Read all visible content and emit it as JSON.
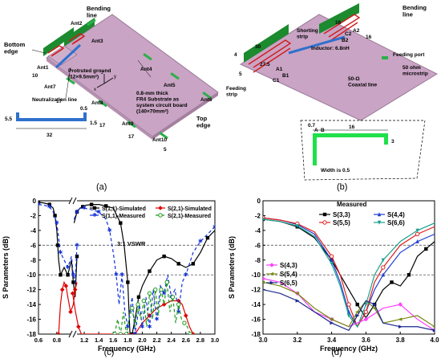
{
  "panel_a": {
    "caption": "(a)",
    "labels": {
      "bottom_edge": "Bottom\nedge",
      "bending_line": "Bending\nline",
      "top_edge": "Top\nedge",
      "protruted_ground": "Protruted ground\n(12×9.5mm²)",
      "substrate": "0.8-mm thick\nFR4 Substrate as\nsystem circuit board\n(140×70mm²)",
      "neutralization": "Neutralization line",
      "ant1": "Ant1",
      "ant2": "Ant2",
      "ant3": "Ant3",
      "ant4": "Ant4",
      "ant5": "Ant5",
      "ant6": "Ant6",
      "ant7": "Ant7",
      "ant8": "Ant8",
      "ant9": "Ant9",
      "ant10": "Ant10",
      "dim_10": "10",
      "dim_17a": "17",
      "dim_17b": "17",
      "dim_17c": "17",
      "dim_5": "5",
      "dim_55": "5.5",
      "dim_05": "0.5",
      "dim_15": "1.5",
      "dim_32": "32",
      "axis_x": "x",
      "axis_y": "y",
      "axis_z": "z"
    }
  },
  "panel_b": {
    "caption": "(b)",
    "labels": {
      "bending_line": "Bending\nline",
      "shorting_strip": "Shorting\nstrip",
      "inductor": "Inductor: 6.8nH",
      "feeding_port": "Feeding port",
      "microstrip": "50 ohm\nmicrostrip",
      "coax": "50-Ω\nCoaxial line",
      "feeding_strip": "Feeding\nstrip",
      "width": "Width is 0.5",
      "dim_30": "30",
      "dim_16a": "16",
      "dim_16b": "16",
      "dim_16c": "16",
      "dim_275": "27.5",
      "dim_07": "0.7",
      "dim_3": "3",
      "dim_4": "4",
      "dim_5": "5",
      "a1": "A1",
      "a2": "A2",
      "b1": "B1",
      "b2": "B2",
      "c1": "C1",
      "c2": "C2",
      "a": "A",
      "b": "B"
    }
  },
  "colors": {
    "substrate": "#c9a4c4",
    "antenna": "#1c8a2e",
    "blue_strip": "#2f70cc",
    "red_line": "#d21c1c",
    "green_line": "#1fe04a"
  },
  "chart_data": [
    {
      "type": "line",
      "caption": "(c)",
      "xlabel": "Frequency (GHz)",
      "ylabel": "S Parameters (dB)",
      "xticks": [
        "0.6",
        "0.8",
        "1.0",
        "1.2",
        "1.4",
        "1.6",
        "1.8",
        "2.0",
        "2.2",
        "2.4",
        "2.6",
        "2.8",
        "3.0"
      ],
      "yticks": [
        "0",
        "-2",
        "-4",
        "-6",
        "-8",
        "-10",
        "-12",
        "-14",
        "-16",
        "-18"
      ],
      "ylim": [
        -18,
        0
      ],
      "annotation": "3:1 VSWR",
      "reference_lines": [
        -6,
        -10
      ],
      "grid": false,
      "legend_position": "top",
      "series": [
        {
          "name": "S(1,1)-Simulated",
          "color": "#000000",
          "marker": "square",
          "dash": "none",
          "x": [
            0.6,
            0.66,
            0.72,
            0.76,
            0.78,
            0.8,
            0.81,
            0.82,
            0.84,
            0.88,
            0.92,
            0.96,
            0.98,
            1.0,
            1.02,
            1.06,
            1.1,
            1.14,
            1.18,
            1.22,
            1.3,
            1.4,
            1.5,
            1.6,
            1.7,
            1.75,
            1.8,
            1.83,
            1.86,
            1.9,
            1.95,
            2.0,
            2.1,
            2.2,
            2.3,
            2.4,
            2.5,
            2.6,
            2.7,
            2.8,
            2.9,
            3.0
          ],
          "y": [
            -0.2,
            -0.3,
            -0.5,
            -1,
            -2,
            -4,
            -6,
            -8,
            -10,
            -9,
            -10,
            -8,
            -11,
            -13,
            -7.5,
            -3,
            -1.5,
            -1,
            -0.8,
            -0.6,
            -0.5,
            -0.5,
            -0.7,
            -1,
            -3,
            -6,
            -11,
            -18,
            -18,
            -16,
            -13,
            -11.5,
            -9.5,
            -8,
            -7.5,
            -7.8,
            -8.5,
            -9,
            -8.5,
            -7,
            -5,
            -4
          ]
        },
        {
          "name": "S(2,1)-Simulated",
          "color": "#e00000",
          "marker": "diamond",
          "dash": "none",
          "x": [
            0.82,
            0.84,
            0.86,
            0.88,
            0.9,
            0.92,
            0.95,
            0.98,
            1.0,
            1.02,
            1.04,
            1.08,
            1.12,
            1.16,
            1.9,
            2.0,
            2.1,
            2.2,
            2.3,
            2.4,
            2.5,
            2.55,
            2.6,
            2.65,
            2.7
          ],
          "y": [
            -18,
            -14,
            -12,
            -11,
            -11.5,
            -13,
            -15,
            -14,
            -12,
            -11,
            -12.5,
            -15,
            -17,
            -18,
            -18,
            -16.5,
            -15.5,
            -14.5,
            -14,
            -13.5,
            -13.5,
            -14,
            -15.5,
            -17,
            -18
          ]
        },
        {
          "name": "S(1,1)-Measured",
          "color": "#1030d8",
          "marker": "star",
          "dash": "4,3",
          "x": [
            0.6,
            0.66,
            0.72,
            0.76,
            0.8,
            0.82,
            0.84,
            0.88,
            0.92,
            0.96,
            0.98,
            1.0,
            1.02,
            1.06,
            1.1,
            1.14,
            1.2,
            1.3,
            1.4,
            1.5,
            1.55,
            1.6,
            1.64,
            1.68,
            1.72,
            1.76,
            1.8,
            1.86,
            1.9,
            1.96,
            2.0,
            2.05,
            2.1,
            2.15,
            2.2,
            2.25,
            2.3,
            2.35,
            2.4,
            2.45,
            2.5,
            2.55,
            2.6,
            2.7,
            2.8,
            2.9,
            3.0
          ],
          "y": [
            -0.5,
            -0.6,
            -0.8,
            -1.5,
            -3,
            -5,
            -7,
            -8,
            -9,
            -7.5,
            -10,
            -11,
            -6,
            -2.5,
            -1.5,
            -1,
            -1,
            -1.2,
            -1.5,
            -2.5,
            -4,
            -7,
            -10,
            -14,
            -10,
            -15,
            -17,
            -13,
            -18,
            -14,
            -17,
            -13,
            -17,
            -12,
            -16,
            -11.5,
            -12.5,
            -10,
            -13,
            -12,
            -15,
            -11,
            -10,
            -7,
            -5.5,
            -4.5,
            -3.5
          ]
        },
        {
          "name": "S(2,1)-Measured",
          "color": "#1a9a1a",
          "marker": "circle",
          "dash": "4,3",
          "x": [
            1.62,
            1.66,
            1.7,
            1.74,
            1.78,
            1.82,
            1.86,
            1.9,
            1.94,
            1.98,
            2.02,
            2.06,
            2.1,
            2.14,
            2.18,
            2.22,
            2.26,
            2.3,
            2.34,
            2.38,
            2.42,
            2.46,
            2.5,
            2.54,
            2.58,
            2.62,
            2.66
          ],
          "y": [
            -18,
            -16,
            -18,
            -15,
            -18,
            -16,
            -14.5,
            -17,
            -14,
            -16,
            -13.5,
            -17,
            -12.5,
            -16,
            -12,
            -15.5,
            -12,
            -14,
            -11,
            -15,
            -13,
            -16.5,
            -14,
            -16,
            -16.5,
            -17,
            -18
          ]
        }
      ]
    },
    {
      "type": "line",
      "caption": "(d)",
      "xlabel": "Frequency (GHz)",
      "ylabel": "S Parameters (dB)",
      "xticks": [
        "3.0",
        "3.2",
        "3.4",
        "3.6",
        "3.8",
        "4.0"
      ],
      "yticks": [
        "0",
        "-2",
        "-4",
        "-6",
        "-8",
        "-10",
        "-12",
        "-14",
        "-16",
        "-18"
      ],
      "xlim": [
        3.0,
        4.0
      ],
      "ylim": [
        -18,
        0
      ],
      "reference_lines": [
        -6,
        -10
      ],
      "legend_title": "Measured",
      "grid": false,
      "series": [
        {
          "name": "S(3,3)",
          "color": "#000000",
          "marker": "square",
          "x": [
            3.0,
            3.1,
            3.2,
            3.3,
            3.4,
            3.5,
            3.55,
            3.6,
            3.65,
            3.7,
            3.75,
            3.8,
            3.85,
            3.9,
            3.95,
            4.0
          ],
          "y": [
            -2.5,
            -2.8,
            -3.5,
            -5,
            -8,
            -12,
            -14,
            -15.8,
            -14,
            -12,
            -11,
            -11.5,
            -10,
            -7.5,
            -6.5,
            -5.5
          ]
        },
        {
          "name": "S(4,4)",
          "color": "#1f3fd0",
          "marker": "triangle",
          "x": [
            3.0,
            3.1,
            3.2,
            3.3,
            3.4,
            3.45,
            3.5,
            3.55,
            3.6,
            3.65,
            3.7,
            3.8,
            3.9,
            4.0
          ],
          "y": [
            -2.3,
            -2.6,
            -3.2,
            -4.5,
            -8,
            -11,
            -15,
            -17,
            -15,
            -12,
            -10,
            -7,
            -5.5,
            -4.5
          ]
        },
        {
          "name": "S(5,5)",
          "color": "#e02020",
          "marker": "circle",
          "x": [
            3.0,
            3.1,
            3.2,
            3.3,
            3.4,
            3.45,
            3.5,
            3.55,
            3.6,
            3.65,
            3.7,
            3.8,
            3.9,
            4.0
          ],
          "y": [
            -2.3,
            -2.6,
            -3.1,
            -4.2,
            -7.5,
            -10,
            -14,
            -17,
            -15,
            -11,
            -9,
            -6,
            -4.5,
            -3.5
          ]
        },
        {
          "name": "S(6,6)",
          "color": "#1aa090",
          "marker": "inverted-triangle",
          "x": [
            3.0,
            3.1,
            3.2,
            3.3,
            3.4,
            3.45,
            3.5,
            3.55,
            3.6,
            3.65,
            3.7,
            3.8,
            3.9,
            4.0
          ],
          "y": [
            -2.5,
            -2.8,
            -3.4,
            -4.8,
            -8.5,
            -11.5,
            -15.5,
            -17,
            -14,
            -10,
            -8,
            -5.5,
            -4,
            -3
          ]
        },
        {
          "name": "S(4,3)",
          "color": "#ff40ff",
          "marker": "diamond",
          "x": [
            3.0,
            3.1,
            3.2,
            3.3,
            3.4,
            3.5,
            3.6,
            3.7,
            3.8,
            3.9,
            4.0
          ],
          "y": [
            -10.5,
            -11,
            -12.5,
            -15,
            -16,
            -17,
            -16,
            -14.5,
            -14,
            -16,
            -17.5
          ]
        },
        {
          "name": "S(5,4)",
          "color": "#7a8a10",
          "marker": "triangle-left",
          "x": [
            3.0,
            3.1,
            3.2,
            3.3,
            3.4,
            3.5,
            3.55,
            3.6,
            3.65,
            3.7,
            3.8,
            3.9,
            4.0
          ],
          "y": [
            -11,
            -11.5,
            -12.5,
            -14.5,
            -16,
            -17,
            -15,
            -13.5,
            -14.5,
            -16.5,
            -16,
            -15.5,
            -17
          ]
        },
        {
          "name": "S(6,5)",
          "color": "#1a2a90",
          "marker": "triangle-right",
          "x": [
            3.0,
            3.1,
            3.2,
            3.3,
            3.4,
            3.5,
            3.55,
            3.6,
            3.65,
            3.7,
            3.8,
            3.9,
            4.0
          ],
          "y": [
            -12,
            -12.5,
            -13.5,
            -15,
            -16.5,
            -17.5,
            -15.5,
            -13.5,
            -14,
            -16.5,
            -17,
            -17,
            -17.5
          ]
        }
      ]
    }
  ]
}
